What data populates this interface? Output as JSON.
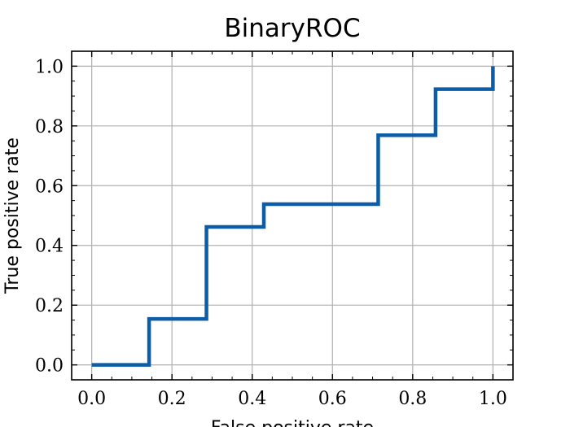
{
  "chart_data": {
    "type": "line",
    "title": "BinaryROC",
    "xlabel": "False positive rate",
    "ylabel": "True positive rate",
    "xlim": [
      -0.05,
      1.05
    ],
    "ylim": [
      -0.05,
      1.05
    ],
    "xticks": [
      "0.0",
      "0.2",
      "0.4",
      "0.6",
      "0.8",
      "1.0"
    ],
    "yticks": [
      "0.0",
      "0.2",
      "0.4",
      "0.6",
      "0.8",
      "1.0"
    ],
    "grid": true,
    "series": [
      {
        "color": "#0c5da5",
        "x": [
          0.0,
          0.143,
          0.143,
          0.286,
          0.286,
          0.429,
          0.429,
          0.714,
          0.714,
          0.857,
          0.857,
          1.0,
          1.0
        ],
        "y": [
          0.0,
          0.0,
          0.154,
          0.154,
          0.462,
          0.462,
          0.538,
          0.538,
          0.769,
          0.769,
          0.923,
          0.923,
          1.0
        ]
      }
    ]
  }
}
